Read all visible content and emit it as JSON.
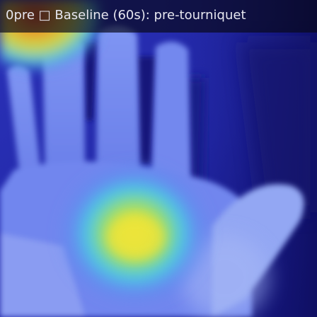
{
  "frame": {
    "caption": "0pre □ Baseline (60s): pre-tourniquet",
    "colors": {
      "background_deep": "#0d0d5c",
      "background_mid": "#2d35c4",
      "skin_cool": "#6d83f0",
      "skin_pale": "#9fb2f5",
      "warm_cyan": "#52c8e8",
      "warm_green": "#9be06a",
      "hot_yellow": "#e6e83a",
      "corner_red": "#e0502a",
      "caption_text": "#e6e6ef"
    }
  }
}
